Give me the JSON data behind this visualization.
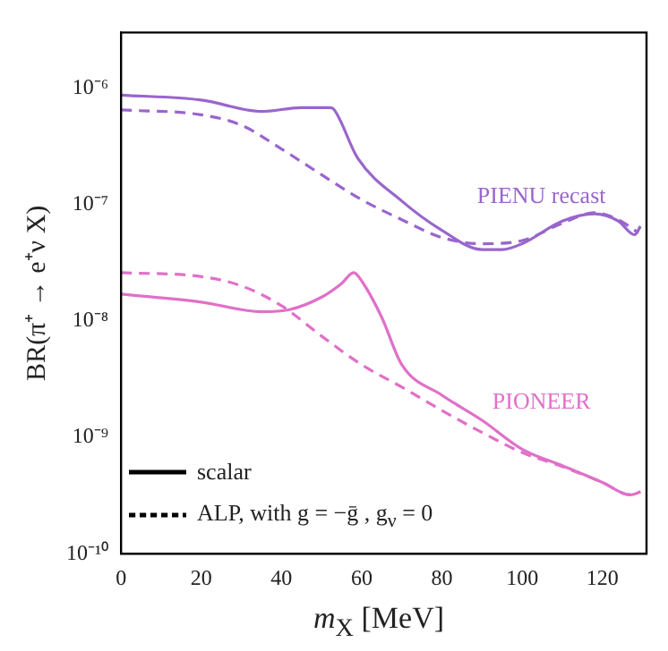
{
  "chart_data": {
    "type": "line",
    "xlabel": "m$_{X}$  [MeV]",
    "ylabel": "BR(π⁺ → e⁺ν X)",
    "log": "y",
    "grid": false,
    "marker": "none",
    "xlim": [
      0,
      131
    ],
    "xticks": [
      0,
      20,
      40,
      60,
      80,
      100,
      120
    ],
    "ylim": [
      1e-10,
      3e-06
    ],
    "yticks": [
      {
        "value": 1e-10,
        "label": "10⁻¹⁰"
      },
      {
        "value": 1e-09,
        "label": "10⁻⁹"
      },
      {
        "value": 1e-08,
        "label": "10⁻⁸"
      },
      {
        "value": 1e-07,
        "label": "10⁻⁷"
      },
      {
        "value": 1e-06,
        "label": "10⁻⁶"
      }
    ],
    "series": [
      {
        "name": "PIENU recast",
        "color": "#9966cc",
        "line_style": "solid",
        "x": [
          0,
          20,
          35,
          45,
          52,
          53,
          59,
          70,
          80,
          90,
          95,
          100,
          110,
          118,
          124,
          128,
          129.5
        ],
        "values": [
          8.7e-07,
          7.9e-07,
          6.3e-07,
          6.8e-07,
          6.8e-07,
          6.6e-07,
          2.5e-07,
          1.07e-07,
          6e-08,
          4.1e-08,
          4.1e-08,
          4.6e-08,
          7.2e-08,
          8.3e-08,
          7.2e-08,
          5.5e-08,
          6.5e-08
        ]
      },
      {
        "color": "#9966cc",
        "line_style": "dashed",
        "x": [
          0,
          20,
          30,
          40,
          50,
          60,
          70,
          80,
          90,
          100,
          110,
          118,
          124,
          129
        ],
        "values": [
          6.5e-07,
          5.9e-07,
          4.8e-07,
          3e-07,
          1.8e-07,
          1.1e-07,
          7.4e-08,
          5.2e-08,
          4.6e-08,
          4.9e-08,
          6.9e-08,
          8.5e-08,
          7.4e-08,
          5.7e-08
        ]
      },
      {
        "name": "PIONEER",
        "color": "#e070c8",
        "line_style": "solid",
        "x": [
          0,
          20,
          35,
          42,
          50,
          55,
          58,
          60,
          65,
          70,
          80,
          90,
          100,
          110,
          120,
          127,
          129.5
        ],
        "values": [
          1.7e-08,
          1.45e-08,
          1.2e-08,
          1.25e-08,
          1.6e-08,
          2.1e-08,
          2.6e-08,
          2.2e-08,
          1.07e-08,
          4.2e-09,
          2.3e-09,
          1.4e-09,
          7.9e-10,
          5.7e-10,
          4.1e-10,
          3.2e-10,
          3.4e-10
        ]
      },
      {
        "color": "#e070c8",
        "line_style": "dashed",
        "x": [
          0,
          20,
          30,
          40,
          50,
          60,
          70,
          80,
          90,
          100,
          110,
          120,
          127,
          129.5
        ],
        "values": [
          2.6e-08,
          2.4e-08,
          2e-08,
          1.35e-08,
          7.4e-09,
          4.2e-09,
          2.7e-09,
          1.7e-09,
          1.1e-09,
          7.4e-10,
          5.6e-10,
          4.1e-10,
          3.2e-10,
          3.4e-10
        ]
      }
    ],
    "annotations": [
      "scalar",
      "ALP,  with g = −ḡ ,  g$_{ν}$ = 0"
    ]
  }
}
